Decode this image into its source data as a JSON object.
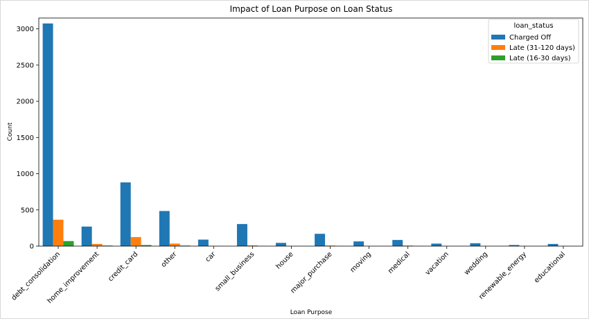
{
  "chart_data": {
    "type": "bar",
    "title": "Impact of Loan Purpose on Loan Status",
    "xlabel": "Loan Purpose",
    "ylabel": "Count",
    "ylim": [
      0,
      3150
    ],
    "yticks": [
      0,
      500,
      1000,
      1500,
      2000,
      2500,
      3000
    ],
    "grid": false,
    "legend_title": "loan_status",
    "legend_position": "top-right",
    "categories": [
      "debt_consolidation",
      "home_improvement",
      "credit_card",
      "other",
      "car",
      "small_business",
      "house",
      "major_purchase",
      "moving",
      "medical",
      "vacation",
      "wedding",
      "renewable_energy",
      "educational"
    ],
    "series": [
      {
        "name": "Charged Off",
        "color": "#1f77b4",
        "values": [
          3075,
          270,
          880,
          485,
          90,
          305,
          45,
          170,
          65,
          85,
          35,
          40,
          15,
          30
        ]
      },
      {
        "name": "Late (31-120 days)",
        "color": "#ff7f0e",
        "values": [
          365,
          30,
          125,
          35,
          3,
          10,
          2,
          8,
          2,
          8,
          2,
          2,
          1,
          1
        ]
      },
      {
        "name": "Late (16-30 days)",
        "color": "#2ca02c",
        "values": [
          70,
          8,
          15,
          8,
          1,
          2,
          1,
          2,
          1,
          2,
          1,
          1,
          0,
          0
        ]
      }
    ]
  }
}
